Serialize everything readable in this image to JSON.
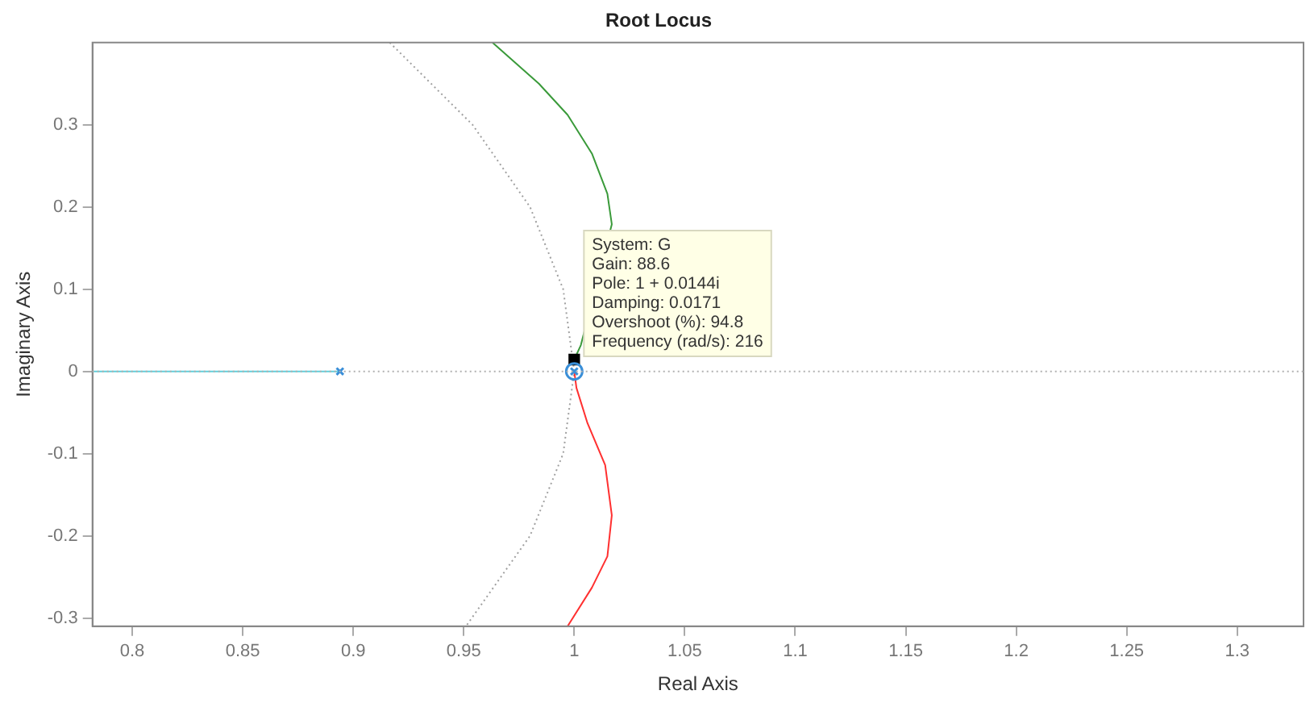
{
  "chart_data": {
    "type": "line",
    "title": "Root Locus",
    "xlabel": "Real Axis",
    "ylabel": "Imaginary Axis",
    "xlim": [
      0.782,
      1.33
    ],
    "ylim": [
      -0.31,
      0.4
    ],
    "xticks": [
      0.8,
      0.85,
      0.9,
      0.95,
      1,
      1.05,
      1.1,
      1.15,
      1.2,
      1.25,
      1.3
    ],
    "yticks": [
      -0.3,
      -0.2,
      -0.1,
      0,
      0.1,
      0.2,
      0.3
    ],
    "grid": false,
    "legend": false,
    "ref_lines": [
      {
        "axis": "y",
        "value": 0,
        "color": "#b0b0b0",
        "line_style": "dotted"
      }
    ],
    "annotations": [
      {
        "text": "System: G\nGain: 88.6\nPole: 1 + 0.0144i\nDamping: 0.0171\nOvershoot (%): 94.8\nFrequency (rad/s): 216",
        "x": 1,
        "y": 0.0144
      }
    ],
    "series": [
      {
        "color": "#5fd0dc",
        "marker": "none",
        "line_style": "solid",
        "x": [
          0.782,
          0.894
        ],
        "values": [
          0,
          0
        ]
      },
      {
        "color": "#3a9a3a",
        "marker": "none",
        "line_style": "solid",
        "x": [
          0.963,
          0.984,
          0.997,
          1.008,
          1.015,
          1.017,
          1.003,
          1.0
        ],
        "values": [
          0.4,
          0.35,
          0.312,
          0.265,
          0.216,
          0.179,
          0.032,
          0.0144
        ]
      },
      {
        "color": "#ff3030",
        "marker": "none",
        "line_style": "solid",
        "x": [
          1.0,
          1.001,
          1.006,
          1.014,
          1.017,
          1.015,
          1.008,
          0.997
        ],
        "values": [
          0,
          -0.02,
          -0.063,
          -0.114,
          -0.175,
          -0.225,
          -0.263,
          -0.31
        ]
      },
      {
        "color": "#a0a0a0",
        "marker": "none",
        "line_style": "dotted",
        "x": [
          0.9165,
          0.954,
          0.98,
          0.995,
          1,
          0.995,
          0.98,
          0.951
        ],
        "values": [
          0.4,
          0.3,
          0.2,
          0.1,
          0,
          -0.1,
          -0.2,
          -0.31
        ]
      },
      {
        "type": "scatter",
        "color": "#3a8fd8",
        "marker": "cross",
        "x": [
          0.894,
          1
        ],
        "values": [
          0,
          0
        ]
      },
      {
        "type": "scatter",
        "color": "#3a8fd8",
        "marker": "circle",
        "x": [
          1
        ],
        "values": [
          0
        ]
      },
      {
        "type": "scatter",
        "color": "#000000",
        "marker": "square",
        "x": [
          1
        ],
        "values": [
          0.0144
        ]
      }
    ]
  }
}
